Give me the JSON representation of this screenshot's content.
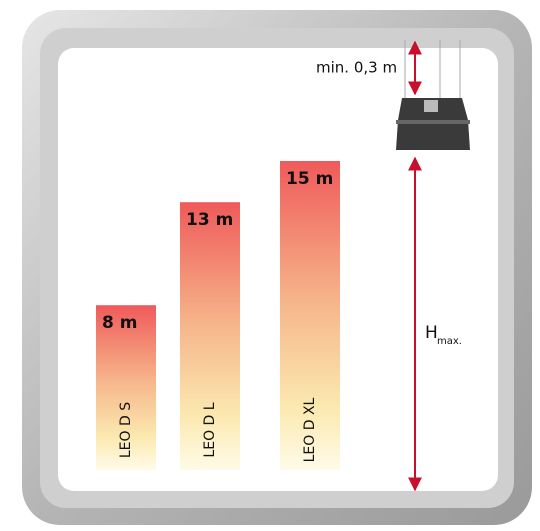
{
  "chart_data": {
    "type": "bar",
    "categories": [
      "LEO D S",
      "LEO D L",
      "LEO D XL"
    ],
    "values": [
      8,
      13,
      15
    ],
    "value_labels": [
      "8 m",
      "13 m",
      "15 m"
    ],
    "annotations": [
      "min. 0,3 m",
      "H",
      "max."
    ]
  }
}
